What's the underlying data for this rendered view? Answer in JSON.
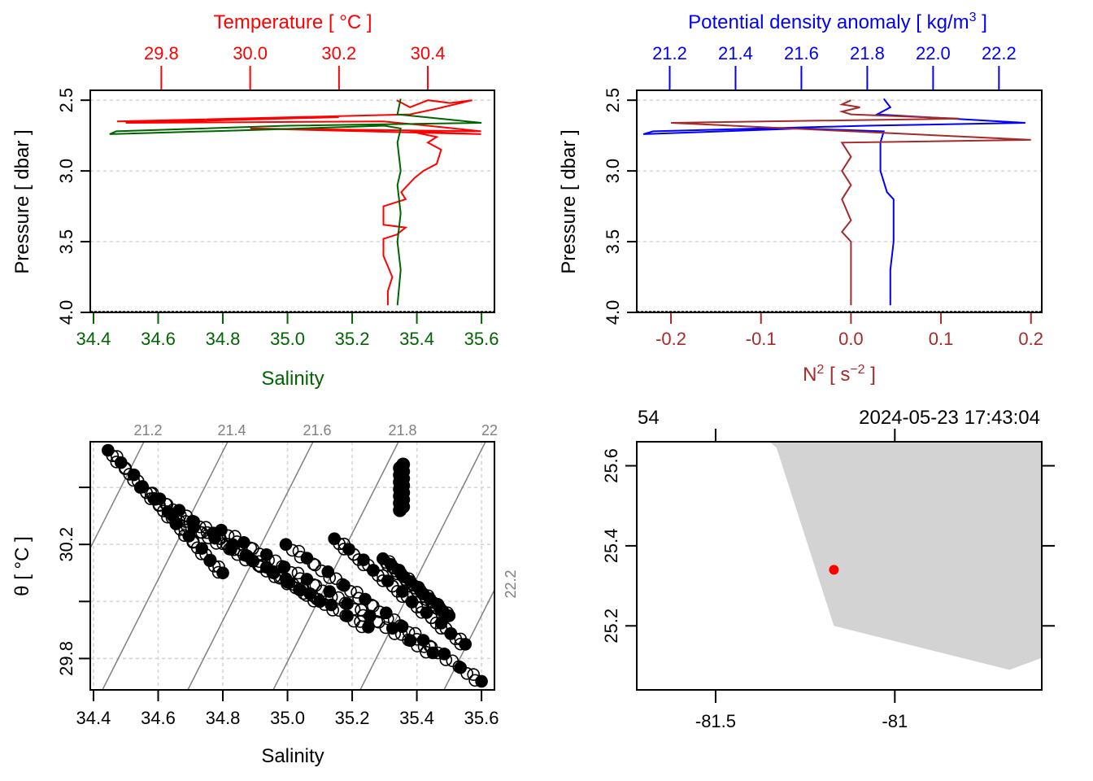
{
  "chart_data": [
    {
      "id": "tsp",
      "type": "line",
      "title": "Temperature [ °C ]",
      "xlabel": "Salinity",
      "ylabel": "Pressure [ dbar ]",
      "colors": {
        "temperature": "#ff0000",
        "salinity": "#006400"
      },
      "top_axis": {
        "label": "Temperature [ °C ]",
        "range": [
          29.64,
          30.55
        ],
        "ticks": [
          29.8,
          30.0,
          30.2,
          30.4
        ],
        "tick_labels": [
          "29.8",
          "30.0",
          "30.2",
          "30.4"
        ]
      },
      "bottom_axis": {
        "label": "Salinity",
        "range": [
          34.39,
          35.64
        ],
        "ticks": [
          34.4,
          34.6,
          34.8,
          35.0,
          35.2,
          35.4,
          35.6
        ],
        "tick_labels": [
          "34.4",
          "34.6",
          "34.8",
          "35.0",
          "35.2",
          "35.4",
          "35.6"
        ]
      },
      "y_axis": {
        "range": [
          2.43,
          4.0
        ],
        "reversed": true,
        "ticks": [
          2.5,
          3.0,
          3.5,
          4.0
        ],
        "tick_labels": [
          "2.5",
          "3.0",
          "3.5",
          "4.0"
        ]
      },
      "grid": true,
      "series": [
        {
          "name": "Temperature",
          "axis": "top",
          "points": [
            [
              30.33,
              2.5
            ],
            [
              30.36,
              2.55
            ],
            [
              30.4,
              2.5
            ],
            [
              30.45,
              2.52
            ],
            [
              30.5,
              2.5
            ],
            [
              30.42,
              2.56
            ],
            [
              30.36,
              2.6
            ],
            [
              29.7,
              2.65
            ],
            [
              30.2,
              2.62
            ],
            [
              29.72,
              2.66
            ],
            [
              30.3,
              2.65
            ],
            [
              30.4,
              2.68
            ],
            [
              30.52,
              2.72
            ],
            [
              30.0,
              2.7
            ],
            [
              30.52,
              2.74
            ],
            [
              30.36,
              2.72
            ],
            [
              30.42,
              2.76
            ],
            [
              30.4,
              2.8
            ],
            [
              30.43,
              2.85
            ],
            [
              30.42,
              2.95
            ],
            [
              30.39,
              3.0
            ],
            [
              30.37,
              3.05
            ],
            [
              30.34,
              3.15
            ],
            [
              30.35,
              3.2
            ],
            [
              30.33,
              3.22
            ],
            [
              30.3,
              3.25
            ],
            [
              30.3,
              3.38
            ],
            [
              30.35,
              3.4
            ],
            [
              30.33,
              3.45
            ],
            [
              30.3,
              3.48
            ],
            [
              30.3,
              3.6
            ],
            [
              30.32,
              3.75
            ],
            [
              30.31,
              3.85
            ],
            [
              30.31,
              3.95
            ]
          ]
        },
        {
          "name": "Salinity",
          "axis": "bottom",
          "points": [
            [
              35.35,
              2.49
            ],
            [
              35.34,
              2.6
            ],
            [
              35.6,
              2.66
            ],
            [
              35.0,
              2.68
            ],
            [
              34.47,
              2.72
            ],
            [
              34.45,
              2.74
            ],
            [
              34.9,
              2.71
            ],
            [
              35.3,
              2.68
            ],
            [
              35.35,
              2.7
            ],
            [
              35.34,
              2.8
            ],
            [
              35.35,
              3.0
            ],
            [
              35.34,
              3.1
            ],
            [
              35.35,
              3.3
            ],
            [
              35.34,
              3.5
            ],
            [
              35.35,
              3.7
            ],
            [
              35.34,
              3.95
            ]
          ]
        }
      ]
    },
    {
      "id": "density-n2",
      "type": "line",
      "title": "Potential density anomaly [ kg/m3 ]",
      "xlabel": "N2 [ s-2 ]",
      "ylabel": "Pressure [ dbar ]",
      "colors": {
        "density": "#0000ff",
        "n2": "#a52a2a"
      },
      "top_axis": {
        "label": "Potential density anomaly [ kg/m3 ]",
        "range": [
          21.1,
          22.33
        ],
        "ticks": [
          21.2,
          21.4,
          21.6,
          21.8,
          22.0,
          22.2
        ],
        "tick_labels": [
          "21.2",
          "21.4",
          "21.6",
          "21.8",
          "22.0",
          "22.2"
        ]
      },
      "bottom_axis": {
        "label": "N² [ s⁻² ]",
        "range": [
          -0.238,
          0.212
        ],
        "ticks": [
          -0.2,
          -0.1,
          0.0,
          0.1,
          0.2
        ],
        "tick_labels": [
          "-0.2",
          "-0.1",
          "0.0",
          "0.1",
          "0.2"
        ]
      },
      "y_axis": {
        "range": [
          2.43,
          4.0
        ],
        "reversed": true,
        "ticks": [
          2.5,
          3.0,
          3.5,
          4.0
        ],
        "tick_labels": [
          "2.5",
          "3.0",
          "3.5",
          "4.0"
        ]
      },
      "grid": true,
      "series": [
        {
          "name": "Potential density anomaly",
          "axis": "top",
          "points": [
            [
              21.85,
              2.49
            ],
            [
              21.87,
              2.55
            ],
            [
              21.83,
              2.6
            ],
            [
              22.28,
              2.66
            ],
            [
              21.8,
              2.68
            ],
            [
              21.15,
              2.72
            ],
            [
              21.12,
              2.74
            ],
            [
              21.6,
              2.7
            ],
            [
              21.85,
              2.72
            ],
            [
              21.84,
              2.8
            ],
            [
              21.84,
              3.0
            ],
            [
              21.86,
              3.15
            ],
            [
              21.88,
              3.2
            ],
            [
              21.88,
              3.5
            ],
            [
              21.87,
              3.7
            ],
            [
              21.87,
              3.95
            ]
          ]
        },
        {
          "name": "N2",
          "axis": "bottom",
          "points": [
            [
              0.0,
              2.5
            ],
            [
              -0.01,
              2.53
            ],
            [
              0.01,
              2.55
            ],
            [
              -0.01,
              2.58
            ],
            [
              0.0,
              2.6
            ],
            [
              0.12,
              2.63
            ],
            [
              -0.2,
              2.66
            ],
            [
              0.0,
              2.72
            ],
            [
              0.2,
              2.78
            ],
            [
              -0.01,
              2.8
            ],
            [
              0.0,
              2.9
            ],
            [
              -0.01,
              3.0
            ],
            [
              0.0,
              3.1
            ],
            [
              -0.01,
              3.2
            ],
            [
              0.0,
              3.35
            ],
            [
              -0.01,
              3.43
            ],
            [
              0.0,
              3.5
            ],
            [
              0.0,
              3.95
            ]
          ]
        }
      ]
    },
    {
      "id": "ts-diagram",
      "type": "scatter",
      "title": "",
      "xlabel": "Salinity",
      "ylabel": "θ [ °C ]",
      "x_axis": {
        "range": [
          34.39,
          35.64
        ],
        "ticks": [
          34.4,
          34.6,
          34.8,
          35.0,
          35.2,
          35.4,
          35.6
        ],
        "tick_labels": [
          "34.4",
          "34.6",
          "34.8",
          "35.0",
          "35.2",
          "35.4",
          "35.6"
        ]
      },
      "y_axis": {
        "range": [
          29.69,
          30.56
        ],
        "ticks": [
          29.8,
          30.0,
          30.2,
          30.4
        ],
        "tick_labels": [
          "29.8",
          "",
          "30.2",
          ""
        ]
      },
      "isopycnals": {
        "color": "#808080",
        "labels": [
          "21.2",
          "21.4",
          "21.6",
          "21.8",
          "22",
          "22.2"
        ],
        "values": [
          21.2,
          21.4,
          21.6,
          21.8,
          22.0,
          22.2
        ]
      },
      "grid": true,
      "point_color": "#000000",
      "bands": [
        {
          "from": [
            34.45,
            30.53
          ],
          "to": [
            34.8,
            30.1
          ]
        },
        {
          "from": [
            34.55,
            30.4
          ],
          "to": [
            35.1,
            30.0
          ]
        },
        {
          "from": [
            34.65,
            30.3
          ],
          "to": [
            35.25,
            29.91
          ]
        },
        {
          "from": [
            34.8,
            30.25
          ],
          "to": [
            35.45,
            29.82
          ]
        },
        {
          "from": [
            35.0,
            30.2
          ],
          "to": [
            35.6,
            29.72
          ]
        },
        {
          "from": [
            35.15,
            30.22
          ],
          "to": [
            35.55,
            29.85
          ]
        },
        {
          "from": [
            35.3,
            30.15
          ],
          "to": [
            35.5,
            29.95
          ]
        }
      ],
      "cluster": {
        "s": 35.35,
        "theta_range": [
          30.32,
          30.48
        ]
      }
    },
    {
      "id": "map",
      "type": "scatter",
      "title": "",
      "top_left_label": "54",
      "top_right_label": "2024-05-23 17:43:04",
      "x_axis": {
        "range": [
          -81.72,
          -80.59
        ],
        "ticks": [
          -81.5,
          -81.0
        ],
        "tick_labels": [
          "-81.5",
          "-81"
        ]
      },
      "y_axis": {
        "range": [
          25.04,
          25.66
        ],
        "ticks": [
          25.2,
          25.4,
          25.6
        ],
        "tick_labels": [
          "25.2",
          "25.4",
          "25.6"
        ]
      },
      "land_color": "#d3d3d3",
      "land_polygon": [
        [
          -81.35,
          25.66
        ],
        [
          -81.33,
          25.645
        ],
        [
          -81.17,
          25.2
        ],
        [
          -80.68,
          25.09
        ],
        [
          -80.59,
          25.12
        ],
        [
          -80.59,
          25.66
        ]
      ],
      "station": {
        "lon": -81.17,
        "lat": 25.34,
        "color": "#ff0000"
      }
    }
  ]
}
